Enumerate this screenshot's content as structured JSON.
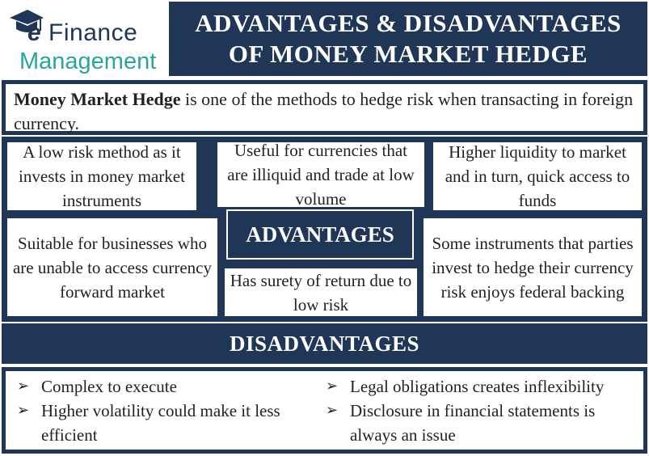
{
  "logo": {
    "icon": "graduation-cap-icon",
    "brand_line1": "Finance",
    "brand_prefix": "e",
    "brand_line2": "Management"
  },
  "title": {
    "line1": "ADVANTAGES & DISADVANTAGES",
    "line2": "OF MONEY MARKET HEDGE"
  },
  "intro": {
    "term": "Money Market Hedge",
    "text": " is one of the methods to hedge risk when transacting in foreign currency."
  },
  "advantages": {
    "heading": "ADVANTAGES",
    "items": [
      "A low risk method as it invests in money market instruments",
      "Useful for currencies that are illiquid and trade at low volume",
      "Higher liquidity to market and in turn, quick access to funds",
      "Suitable for businesses who are unable to access currency forward market",
      "Has surety of return due to low risk",
      "Some instruments that parties invest to hedge their currency risk enjoys federal backing"
    ]
  },
  "disadvantages": {
    "heading": "DISADVANTAGES",
    "bullet": "➢",
    "left": [
      "Complex to execute",
      "Higher volatility could make it less efficient"
    ],
    "right": [
      "Legal obligations creates inflexibility",
      "Disclosure in financial statements is always an issue"
    ]
  },
  "colors": {
    "navy": "#1f3657",
    "teal": "#2aa59b"
  }
}
